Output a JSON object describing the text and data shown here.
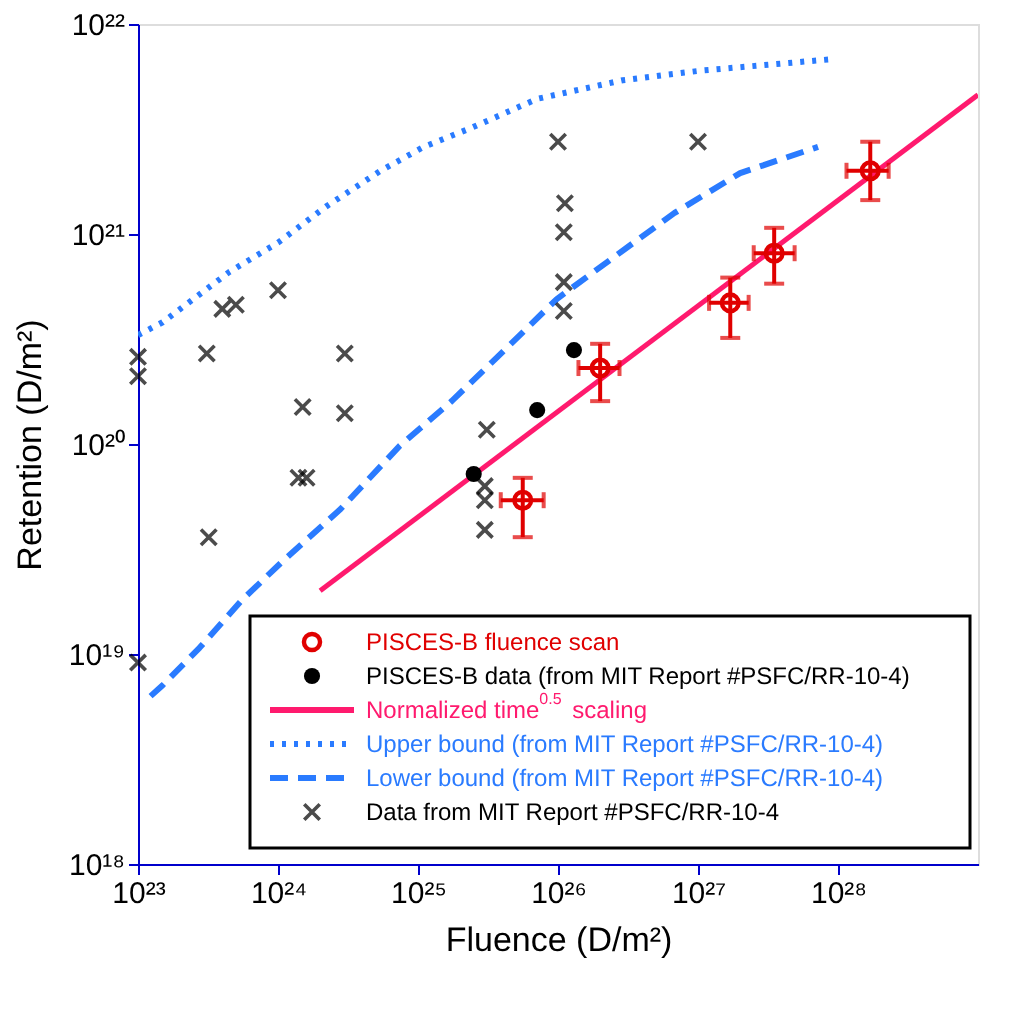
{
  "chart_data": {
    "type": "scatter",
    "xlabel": "Fluence (D/m²)",
    "ylabel": "Retention (D/m²)",
    "xlim": [
      1e+23,
      1e+29
    ],
    "ylim": [
      1e+18,
      1e+22
    ],
    "log": "xy",
    "grid": false,
    "legend": "bottom right",
    "xticks": [
      {
        "value": 1e+23,
        "label": "10²³"
      },
      {
        "value": 1e+24,
        "label": "10²⁴"
      },
      {
        "value": 1e+25,
        "label": "10²⁵"
      },
      {
        "value": 1e+26,
        "label": "10²⁶"
      },
      {
        "value": 1e+27,
        "label": "10²⁷"
      },
      {
        "value": 1e+28,
        "label": "10²⁸"
      }
    ],
    "yticks": [
      {
        "value": 1e+18,
        "label": "10¹⁸"
      },
      {
        "value": 1e+19,
        "label": "10¹⁹"
      },
      {
        "value": 1e+20,
        "label": "10²⁰"
      },
      {
        "value": 1e+21,
        "label": "10²¹"
      },
      {
        "value": 1e+22,
        "label": "10²²"
      }
    ],
    "series": [
      {
        "name": "PISCES-B fluence scan",
        "type": "scatter",
        "marker": "circle",
        "color": "#e00000",
        "x": [
          5.6e+25,
          2e+26,
          1.7e+27,
          3.5e+27,
          1.7e+28
        ],
        "values": [
          5.4e+19,
          2.3e+20,
          4.7e+20,
          8.1e+20,
          2e+21
        ],
        "errors": [
          [
            3.6e+19,
            6.9e+19
          ],
          [
            1.6e+20,
            3e+20
          ],
          [
            3.2e+20,
            6.2e+20
          ],
          [
            5.8e+20,
            1.07e+21
          ],
          [
            1.45e+21,
            2.75e+21
          ]
        ],
        "xerrors": [
          [
            3.9e+25,
            7.9e+25
          ],
          [
            1.4e+26,
            2.75e+26
          ],
          [
            1.2e+27,
            2.3e+27
          ],
          [
            2.5e+27,
            4.9e+27
          ],
          [
            1.15e+28,
            2.3e+28
          ]
        ]
      },
      {
        "name": "PISCES-B data (from MIT Report #PSFC/RR-10-4)",
        "type": "scatter",
        "marker": "circle",
        "color": "#000000",
        "x": [
          2.5e+25,
          7.1e+25,
          1.3e+26
        ],
        "values": [
          7.2e+19,
          1.45e+20,
          2.8e+20
        ]
      },
      {
        "name": "Normalized time$^{0.5}$ scaling",
        "type": "line",
        "line_style": "solid",
        "color": "#ff1a6e",
        "x": [
          2e+24,
          1e+29
        ],
        "values": [
          2e+19,
          4.6e+21
        ]
      },
      {
        "name": "Upper bound (from MIT Report #PSFC/RR-10-4)",
        "type": "line",
        "line_style": "dotted",
        "color": "#2a7bff",
        "x": [
          1e+23,
          1.5e+23,
          4.5e+23,
          1e+24,
          2.2e+24,
          5.4e+24,
          1.1e+25,
          2.4e+25,
          7.1e+25,
          2.9e+26,
          1.05e+27,
          9.1e+27
        ],
        "values": [
          3.3e+20,
          3.8e+20,
          6.6e+20,
          9.1e+20,
          1.35e+21,
          2e+21,
          2.6e+21,
          3.2e+21,
          4.4e+21,
          5.4e+21,
          6e+21,
          6.8e+21
        ]
      },
      {
        "name": "Lower bound (from MIT Report #PSFC/RR-10-4)",
        "type": "line",
        "line_style": "dashed",
        "color": "#2a7bff",
        "x": [
          1.23e+23,
          1.5e+23,
          2.75e+23,
          5.5e+23,
          1.07e+24,
          2.8e+24,
          7.4e+24,
          1.74e+25,
          3.7e+25,
          9.8e+25,
          2.6e+26,
          6.8e+26,
          2e+27,
          7.2e+27
        ],
        "values": [
          6.3e+18,
          7.1e+18,
          1.07e+19,
          1.8e+19,
          2.75e+19,
          4.9e+19,
          9.8e+19,
          1.6e+20,
          2.6e+20,
          4.9e+20,
          7.9e+20,
          1.26e+21,
          1.95e+21,
          2.6e+21
        ]
      },
      {
        "name": "Data from MIT Report #PSFC/RR-10-4",
        "type": "scatter",
        "marker": "cross",
        "color": "#000000",
        "x": [
          1e+26,
          1e+27,
          1.12e+26,
          1.1e+26,
          1.1e+26,
          1.1e+26,
          1e+24,
          4e+23,
          5e+23,
          3.1e+23,
          3e+24,
          1.5e+24,
          3e+24,
          1.4e+24,
          1.6e+24,
          3.2e+23,
          3.1e+25,
          3e+25,
          3e+25,
          3e+25,
          1e+23,
          1e+23,
          1e+23
        ],
        "values": [
          2.75e+21,
          2.75e+21,
          1.4e+21,
          1.02e+21,
          5.9e+20,
          4.3e+20,
          5.4e+20,
          4.4e+20,
          4.6e+20,
          2.7e+20,
          2.7e+20,
          1.5e+20,
          1.4e+20,
          6.9e+19,
          6.9e+19,
          3.6e+19,
          1.17e+20,
          6.3e+19,
          5.4e+19,
          3.9e+19,
          2.6e+20,
          2.1e+20,
          9.1e+18
        ]
      }
    ]
  }
}
